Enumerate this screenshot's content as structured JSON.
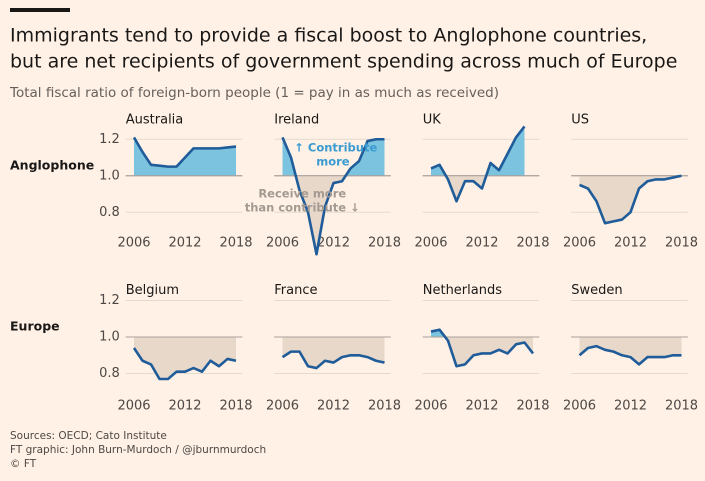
{
  "header": {
    "title": [
      "Immigrants tend to provide a fiscal boost to Anglophone countries,",
      "but are net recipients of government spending across much of Europe"
    ],
    "subtitle": "Total fiscal ratio of foreign-born people (1 = pay in as much as received)"
  },
  "groups": [
    "Anglophone",
    "Europe"
  ],
  "footer": [
    "Sources: OECD; Cato Institute",
    "FT graphic: John Burn-Murdoch / @jburnmurdoch",
    "© FT"
  ],
  "chart_data": [
    {
      "type": "line",
      "title": "Australia",
      "x": [
        2006,
        2007,
        2008,
        2009,
        2010,
        2011,
        2012,
        2013,
        2014,
        2015,
        2016,
        2017,
        2018
      ],
      "values": [
        1.21,
        1.13,
        1.06,
        1.055,
        1.05,
        1.05,
        1.1,
        1.15,
        1.15,
        1.15,
        1.15,
        1.155,
        1.16
      ],
      "color": "#1f5c99",
      "xlim": [
        2005.5,
        2018.5
      ],
      "xticks": [
        2006,
        2012,
        2018
      ],
      "ylim": [
        0.55,
        1.3
      ],
      "yticks": [
        0.8,
        {
          "value": 1,
          "label": "1.0"
        },
        1.2
      ],
      "y_tick_labels": true,
      "baseline": 1
    },
    {
      "type": "line",
      "title": "Ireland",
      "x": [
        2006,
        2007,
        2008,
        2009,
        2010,
        2011,
        2012,
        2013,
        2014,
        2015,
        2016,
        2017,
        2018
      ],
      "values": [
        1.21,
        1.1,
        0.92,
        0.8,
        0.57,
        0.83,
        0.96,
        0.97,
        1.04,
        1.08,
        1.19,
        1.2,
        1.2
      ],
      "color": "#1f5c99",
      "xlim": [
        2005.5,
        2018.5
      ],
      "xticks": [
        2006,
        2012,
        2018
      ],
      "ylim": [
        0.55,
        1.3
      ],
      "yticks": [
        0.8,
        1,
        1.2
      ],
      "y_tick_labels": false,
      "baseline": 1,
      "annotations": [
        {
          "lines": [
            "↑ Contribute",
            "more"
          ],
          "color": "#3a9bd1"
        },
        {
          "lines": [
            "Receive more",
            "than contribute ↓"
          ],
          "color": "#a39a92"
        }
      ]
    },
    {
      "type": "line",
      "title": "UK",
      "x": [
        2006,
        2007,
        2008,
        2009,
        2010,
        2011,
        2012,
        2013,
        2014,
        2015,
        2016,
        2017,
        2018
      ],
      "values": [
        1.04,
        1.06,
        0.98,
        0.86,
        0.97,
        0.97,
        0.93,
        1.07,
        1.03,
        1.12,
        1.21,
        1.27,
        null
      ],
      "color": "#1f5c99",
      "xlim": [
        2005.5,
        2018.5
      ],
      "xticks": [
        2006,
        2012,
        2018
      ],
      "ylim": [
        0.55,
        1.3
      ],
      "yticks": [
        0.8,
        1,
        1.2
      ],
      "y_tick_labels": false,
      "baseline": 1
    },
    {
      "type": "line",
      "title": "US",
      "x": [
        2006,
        2007,
        2008,
        2009,
        2010,
        2011,
        2012,
        2013,
        2014,
        2015,
        2016,
        2017,
        2018
      ],
      "values": [
        0.95,
        0.93,
        0.86,
        0.74,
        0.75,
        0.76,
        0.8,
        0.93,
        0.97,
        0.98,
        0.98,
        0.99,
        1.0
      ],
      "color": "#1f5c99",
      "xlim": [
        2005.5,
        2018.5
      ],
      "xticks": [
        2006,
        2012,
        2018
      ],
      "ylim": [
        0.55,
        1.3
      ],
      "yticks": [
        0.8,
        1,
        1.2
      ],
      "y_tick_labels": false,
      "baseline": 1
    },
    {
      "type": "line",
      "title": "Belgium",
      "x": [
        2006,
        2007,
        2008,
        2009,
        2010,
        2011,
        2012,
        2013,
        2014,
        2015,
        2016,
        2017,
        2018
      ],
      "values": [
        0.94,
        0.87,
        0.85,
        0.77,
        0.77,
        0.81,
        0.81,
        0.83,
        0.81,
        0.87,
        0.84,
        0.88,
        0.87
      ],
      "color": "#1f5c99",
      "xlim": [
        2005.5,
        2018.5
      ],
      "xticks": [
        2006,
        2012,
        2018
      ],
      "ylim": [
        0.7,
        1.25
      ],
      "yticks": [
        0.8,
        {
          "value": 1,
          "label": "1.0"
        },
        1.2
      ],
      "y_tick_labels": true,
      "baseline": 1
    },
    {
      "type": "line",
      "title": "France",
      "x": [
        2006,
        2007,
        2008,
        2009,
        2010,
        2011,
        2012,
        2013,
        2014,
        2015,
        2016,
        2017,
        2018
      ],
      "values": [
        0.89,
        0.92,
        0.92,
        0.84,
        0.83,
        0.87,
        0.86,
        0.89,
        0.9,
        0.9,
        0.89,
        0.87,
        0.86
      ],
      "color": "#1f5c99",
      "xlim": [
        2005.5,
        2018.5
      ],
      "xticks": [
        2006,
        2012,
        2018
      ],
      "ylim": [
        0.7,
        1.25
      ],
      "yticks": [
        0.8,
        1,
        1.2
      ],
      "y_tick_labels": false,
      "baseline": 1
    },
    {
      "type": "line",
      "title": "Netherlands",
      "x": [
        2006,
        2007,
        2008,
        2009,
        2010,
        2011,
        2012,
        2013,
        2014,
        2015,
        2016,
        2017,
        2018
      ],
      "values": [
        1.03,
        1.04,
        0.98,
        0.84,
        0.85,
        0.9,
        0.91,
        0.91,
        0.93,
        0.91,
        0.96,
        0.97,
        0.91
      ],
      "color": "#1f5c99",
      "xlim": [
        2005.5,
        2018.5
      ],
      "xticks": [
        2006,
        2012,
        2018
      ],
      "ylim": [
        0.7,
        1.25
      ],
      "yticks": [
        0.8,
        1,
        1.2
      ],
      "y_tick_labels": false,
      "baseline": 1
    },
    {
      "type": "line",
      "title": "Sweden",
      "x": [
        2006,
        2007,
        2008,
        2009,
        2010,
        2011,
        2012,
        2013,
        2014,
        2015,
        2016,
        2017,
        2018
      ],
      "values": [
        0.9,
        0.94,
        0.95,
        0.93,
        0.92,
        0.9,
        0.89,
        0.85,
        0.89,
        0.89,
        0.89,
        0.9,
        0.9
      ],
      "color": "#1f5c99",
      "xlim": [
        2005.5,
        2018.5
      ],
      "xticks": [
        2006,
        2012,
        2018
      ],
      "ylim": [
        0.7,
        1.25
      ],
      "yticks": [
        0.8,
        1,
        1.2
      ],
      "y_tick_labels": false,
      "baseline": 1
    }
  ]
}
